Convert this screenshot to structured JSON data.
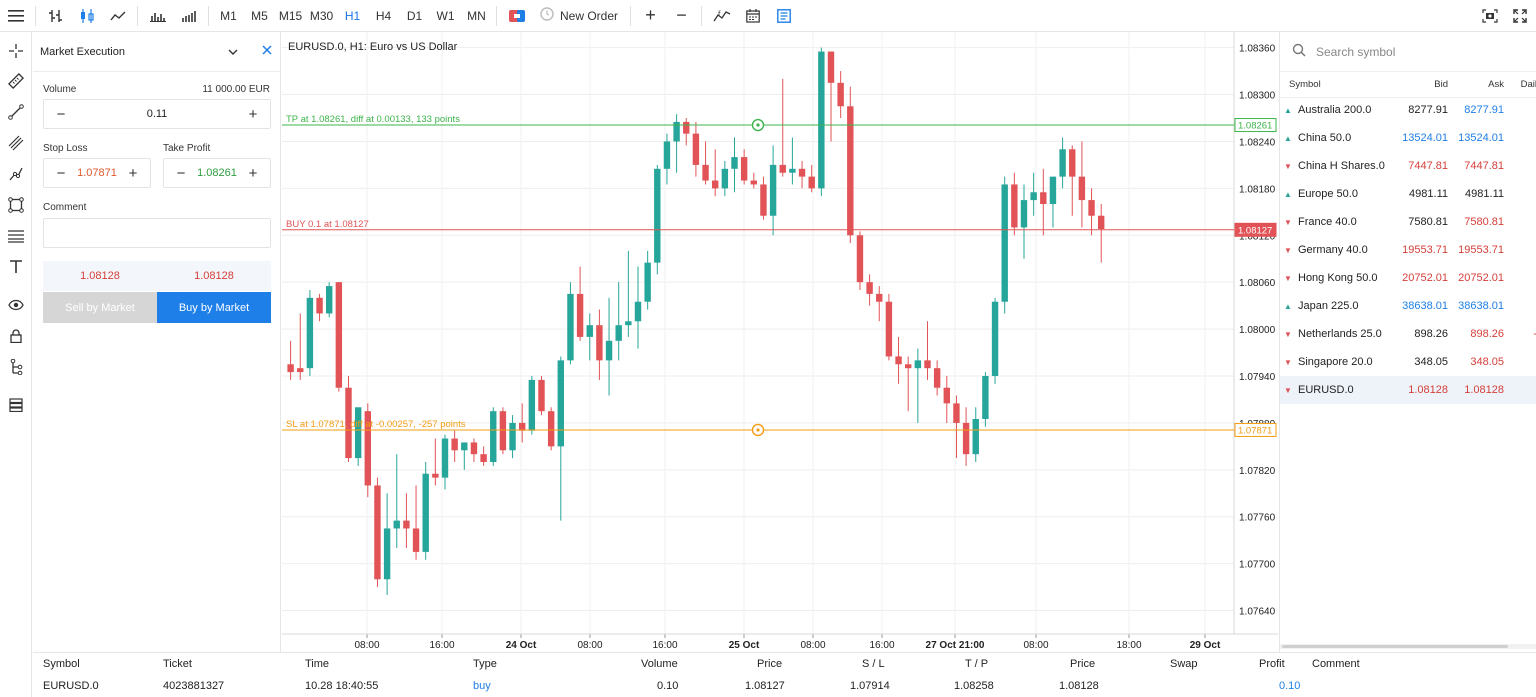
{
  "toolbar": {
    "timeframes": [
      "M1",
      "M5",
      "M15",
      "M30",
      "H1",
      "H4",
      "D1",
      "W1",
      "MN"
    ],
    "active_timeframe": "H1",
    "new_order_label": "New Order"
  },
  "order_panel": {
    "execution_type": "Market Execution",
    "volume_label": "Volume",
    "volume_amount": "11 000.00 EUR",
    "volume_value": "0.11",
    "stop_loss_label": "Stop Loss",
    "stop_loss_value": "1.07871",
    "take_profit_label": "Take Profit",
    "take_profit_value": "1.08261",
    "comment_label": "Comment",
    "sell_price": "1.08128",
    "buy_price": "1.08128",
    "sell_label": "Sell by Market",
    "buy_label": "Buy by Market"
  },
  "chart": {
    "title": "EURUSD.0, H1: Euro vs US Dollar",
    "tp_line_label": "TP at 1.08261, diff at 0.00133, 133 points",
    "buy_line_label": "BUY 0.1 at 1.08127",
    "sl_line_label": "SL at 1.07871, diff at -0.00257, -257 points",
    "tp_tag": "1.08261",
    "buy_tag": "1.08127",
    "sl_tag": "1.07871",
    "colors": {
      "up": "#26a69a",
      "down": "#e15356",
      "tp": "#3cb44b",
      "buy": "#e15356",
      "sl": "#f39c12"
    }
  },
  "chart_data": {
    "type": "candlestick",
    "ylim": [
      1.0761,
      1.0838
    ],
    "y_ticks": [
      "1.08360",
      "1.08300",
      "1.08240",
      "1.08180",
      "1.08120",
      "1.08060",
      "1.08000",
      "1.07940",
      "1.07880",
      "1.07820",
      "1.07760",
      "1.07700",
      "1.07640"
    ],
    "x_ticks": [
      {
        "label": "08:00",
        "bold": false
      },
      {
        "label": "16:00",
        "bold": false
      },
      {
        "label": "24 Oct",
        "bold": true
      },
      {
        "label": "08:00",
        "bold": false
      },
      {
        "label": "16:00",
        "bold": false
      },
      {
        "label": "25 Oct",
        "bold": true
      },
      {
        "label": "08:00",
        "bold": false
      },
      {
        "label": "16:00",
        "bold": false
      },
      {
        "label": "27 Oct 21:00",
        "bold": true
      },
      {
        "label": "08:00",
        "bold": false
      },
      {
        "label": "18:00",
        "bold": false
      },
      {
        "label": "29 Oct",
        "bold": true
      }
    ],
    "candles": [
      [
        1.07955,
        1.07985,
        1.07935,
        1.07945
      ],
      [
        1.0795,
        1.0802,
        1.07935,
        1.07945
      ],
      [
        1.0795,
        1.0805,
        1.0794,
        1.0804
      ],
      [
        1.0804,
        1.08045,
        1.0801,
        1.0802
      ],
      [
        1.0802,
        1.0806,
        1.08015,
        1.08055
      ],
      [
        1.0806,
        1.0806,
        1.0792,
        1.07925
      ],
      [
        1.07925,
        1.0794,
        1.0783,
        1.07835
      ],
      [
        1.07835,
        1.07895,
        1.07825,
        1.079
      ],
      [
        1.07895,
        1.07905,
        1.07785,
        1.078
      ],
      [
        1.078,
        1.0781,
        1.0767,
        1.0768
      ],
      [
        1.0768,
        1.0779,
        1.0766,
        1.07745
      ],
      [
        1.07745,
        1.0784,
        1.0772,
        1.07755
      ],
      [
        1.07755,
        1.0779,
        1.0772,
        1.07745
      ],
      [
        1.07745,
        1.078,
        1.07705,
        1.07715
      ],
      [
        1.07715,
        1.0783,
        1.07705,
        1.07815
      ],
      [
        1.07815,
        1.0786,
        1.078,
        1.0781
      ],
      [
        1.0781,
        1.07865,
        1.07795,
        1.0786
      ],
      [
        1.0786,
        1.0787,
        1.0783,
        1.07845
      ],
      [
        1.07845,
        1.07855,
        1.0782,
        1.07855
      ],
      [
        1.07855,
        1.0786,
        1.0783,
        1.0784
      ],
      [
        1.0784,
        1.0785,
        1.07825,
        1.0783
      ],
      [
        1.0783,
        1.079,
        1.07825,
        1.07895
      ],
      [
        1.07895,
        1.079,
        1.0784,
        1.07845
      ],
      [
        1.07845,
        1.0789,
        1.07835,
        1.0788
      ],
      [
        1.0788,
        1.07905,
        1.07855,
        1.0787
      ],
      [
        1.0787,
        1.0794,
        1.07865,
        1.07935
      ],
      [
        1.07935,
        1.0794,
        1.0789,
        1.07895
      ],
      [
        1.07895,
        1.079,
        1.07845,
        1.0785
      ],
      [
        1.0785,
        1.07965,
        1.07755,
        1.0796
      ],
      [
        1.0796,
        1.0806,
        1.07955,
        1.08045
      ],
      [
        1.08045,
        1.0808,
        1.07985,
        1.0799
      ],
      [
        1.0799,
        1.0802,
        1.0796,
        1.08005
      ],
      [
        1.08005,
        1.08025,
        1.07935,
        1.0796
      ],
      [
        1.0796,
        1.0804,
        1.07915,
        1.07985
      ],
      [
        1.07985,
        1.0806,
        1.0796,
        1.08005
      ],
      [
        1.08005,
        1.081,
        1.0799,
        1.0801
      ],
      [
        1.0801,
        1.0808,
        1.07975,
        1.08035
      ],
      [
        1.08035,
        1.081,
        1.08025,
        1.08085
      ],
      [
        1.08085,
        1.0821,
        1.0807,
        1.08205
      ],
      [
        1.08205,
        1.0825,
        1.08185,
        1.0824
      ],
      [
        1.0824,
        1.08275,
        1.082,
        1.08265
      ],
      [
        1.08265,
        1.0827,
        1.08235,
        1.0825
      ],
      [
        1.0825,
        1.08265,
        1.08195,
        1.0821
      ],
      [
        1.0821,
        1.0824,
        1.08185,
        1.0819
      ],
      [
        1.0819,
        1.0823,
        1.0817,
        1.0818
      ],
      [
        1.0818,
        1.08215,
        1.0817,
        1.08205
      ],
      [
        1.08205,
        1.08245,
        1.08175,
        1.0822
      ],
      [
        1.0822,
        1.0823,
        1.08185,
        1.0819
      ],
      [
        1.0819,
        1.082,
        1.0818,
        1.08185
      ],
      [
        1.08185,
        1.08195,
        1.0814,
        1.08145
      ],
      [
        1.08145,
        1.08235,
        1.0812,
        1.0821
      ],
      [
        1.0821,
        1.0832,
        1.08195,
        1.082
      ],
      [
        1.082,
        1.08245,
        1.08185,
        1.08205
      ],
      [
        1.08205,
        1.08215,
        1.0818,
        1.08195
      ],
      [
        1.08195,
        1.0821,
        1.08175,
        1.0818
      ],
      [
        1.0818,
        1.0836,
        1.0817,
        1.08355
      ],
      [
        1.08355,
        1.0835,
        1.0824,
        1.08315
      ],
      [
        1.08315,
        1.0833,
        1.0827,
        1.08285
      ],
      [
        1.08285,
        1.0831,
        1.0811,
        1.0812
      ],
      [
        1.0812,
        1.08125,
        1.0805,
        1.0806
      ],
      [
        1.0806,
        1.0807,
        1.0803,
        1.08045
      ],
      [
        1.08045,
        1.08055,
        1.0801,
        1.08035
      ],
      [
        1.08035,
        1.08045,
        1.0796,
        1.07965
      ],
      [
        1.07965,
        1.0799,
        1.0793,
        1.07955
      ],
      [
        1.07955,
        1.07965,
        1.07895,
        1.0795
      ],
      [
        1.0795,
        1.07975,
        1.0788,
        1.0796
      ],
      [
        1.0796,
        1.0801,
        1.07935,
        1.0795
      ],
      [
        1.0795,
        1.0796,
        1.07915,
        1.07925
      ],
      [
        1.07925,
        1.0794,
        1.0788,
        1.07905
      ],
      [
        1.07905,
        1.07915,
        1.07835,
        1.0788
      ],
      [
        1.0788,
        1.079,
        1.07825,
        1.0784
      ],
      [
        1.0784,
        1.079,
        1.0783,
        1.07885
      ],
      [
        1.07885,
        1.07945,
        1.07875,
        1.0794
      ],
      [
        1.0794,
        1.0804,
        1.0793,
        1.08035
      ],
      [
        1.08035,
        1.08195,
        1.0802,
        1.08185
      ],
      [
        1.08185,
        1.082,
        1.0812,
        1.0813
      ],
      [
        1.0813,
        1.08185,
        1.0809,
        1.08165
      ],
      [
        1.08165,
        1.082,
        1.08145,
        1.08175
      ],
      [
        1.08175,
        1.08205,
        1.0812,
        1.0816
      ],
      [
        1.0816,
        1.0819,
        1.0813,
        1.08195
      ],
      [
        1.08195,
        1.08245,
        1.0818,
        1.0823
      ],
      [
        1.0823,
        1.08235,
        1.08145,
        1.08195
      ],
      [
        1.08195,
        1.0824,
        1.0813,
        1.08165
      ],
      [
        1.08165,
        1.0818,
        1.0812,
        1.08145
      ],
      [
        1.08145,
        1.0816,
        1.08085,
        1.08128
      ]
    ],
    "tp": 1.08261,
    "buy": 1.08127,
    "sl": 1.07871
  },
  "market_watch": {
    "search_placeholder": "Search symbol",
    "col_symbol": "Symbol",
    "col_bid": "Bid",
    "col_ask": "Ask",
    "col_daily": "Dail",
    "rows": [
      {
        "symbol": "Australia 200.0",
        "dir": "up",
        "bid": "8277.91",
        "ask": "8277.91",
        "bid_color": "dark",
        "ask_color": "blue"
      },
      {
        "symbol": "China 50.0",
        "dir": "up",
        "bid": "13524.01",
        "ask": "13524.01",
        "bid_color": "blue",
        "ask_color": "blue"
      },
      {
        "symbol": "China H Shares.0",
        "dir": "down",
        "bid": "7447.81",
        "ask": "7447.81",
        "bid_color": "red",
        "ask_color": "red"
      },
      {
        "symbol": "Europe 50.0",
        "dir": "up",
        "bid": "4981.11",
        "ask": "4981.11",
        "bid_color": "dark",
        "ask_color": "dark"
      },
      {
        "symbol": "France 40.0",
        "dir": "down",
        "bid": "7580.81",
        "ask": "7580.81",
        "bid_color": "dark",
        "ask_color": "red"
      },
      {
        "symbol": "Germany 40.0",
        "dir": "down",
        "bid": "19553.71",
        "ask": "19553.71",
        "bid_color": "red",
        "ask_color": "red"
      },
      {
        "symbol": "Hong Kong 50.0",
        "dir": "down",
        "bid": "20752.01",
        "ask": "20752.01",
        "bid_color": "red",
        "ask_color": "red"
      },
      {
        "symbol": "Japan 225.0",
        "dir": "up",
        "bid": "38638.01",
        "ask": "38638.01",
        "bid_color": "blue",
        "ask_color": "blue"
      },
      {
        "symbol": "Netherlands 25.0",
        "dir": "down",
        "bid": "898.26",
        "ask": "898.26",
        "bid_color": "dark",
        "ask_color": "red",
        "daily": "-"
      },
      {
        "symbol": "Singapore 20.0",
        "dir": "down",
        "bid": "348.05",
        "ask": "348.05",
        "bid_color": "dark",
        "ask_color": "red"
      },
      {
        "symbol": "EURUSD.0",
        "dir": "down",
        "bid": "1.08128",
        "ask": "1.08128",
        "bid_color": "red",
        "ask_color": "red",
        "selected": true
      }
    ]
  },
  "trades": {
    "headers": {
      "symbol": "Symbol",
      "ticket": "Ticket",
      "time": "Time",
      "type": "Type",
      "volume": "Volume",
      "price": "Price",
      "sl": "S / L",
      "tp": "T / P",
      "price2": "Price",
      "swap": "Swap",
      "profit": "Profit",
      "comment": "Comment"
    },
    "row": {
      "symbol": "EURUSD.0",
      "ticket": "4023881327",
      "time": "10.28 18:40:55",
      "type": "buy",
      "volume": "0.10",
      "price": "1.08127",
      "sl": "1.07914",
      "tp": "1.08258",
      "price2": "1.08128",
      "profit": "0.10"
    }
  }
}
